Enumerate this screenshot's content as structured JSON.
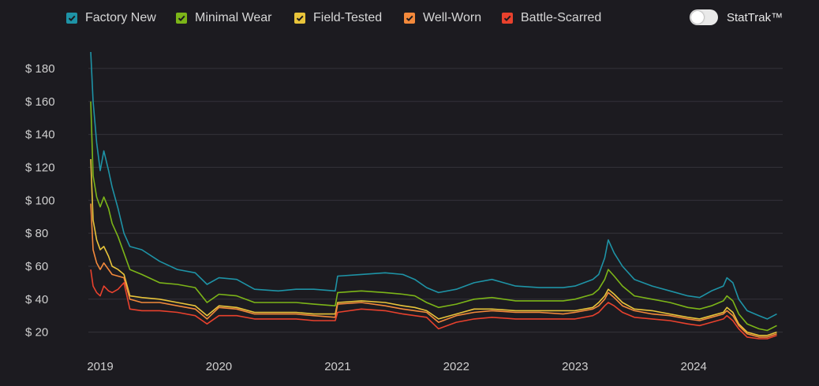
{
  "legend": {
    "items": [
      {
        "label": "Factory New",
        "color": "#1e93a6"
      },
      {
        "label": "Minimal Wear",
        "color": "#7cb518"
      },
      {
        "label": "Field-Tested",
        "color": "#e8c43a"
      },
      {
        "label": "Well-Worn",
        "color": "#f3893b"
      },
      {
        "label": "Battle-Scarred",
        "color": "#e8412d"
      }
    ],
    "stattrak_label": "StatTrak™",
    "stattrak_on": false
  },
  "chart_data": {
    "type": "line",
    "x_ticks": [
      "2019",
      "2020",
      "2021",
      "2022",
      "2023",
      "2024"
    ],
    "y_ticks": [
      "$ 20",
      "$ 40",
      "$ 60",
      "$ 80",
      "$ 100",
      "$ 120",
      "$ 140",
      "$ 160",
      "$ 180"
    ],
    "ylim": [
      16,
      190
    ],
    "xlim": [
      2018.9,
      2024.75
    ],
    "grid": true,
    "legend_position": "top",
    "series": [
      {
        "name": "Factory New",
        "color": "#1e93a6",
        "points": [
          [
            2018.92,
            190
          ],
          [
            2018.94,
            160
          ],
          [
            2018.97,
            135
          ],
          [
            2019.0,
            118
          ],
          [
            2019.03,
            130
          ],
          [
            2019.07,
            118
          ],
          [
            2019.1,
            108
          ],
          [
            2019.15,
            95
          ],
          [
            2019.2,
            80
          ],
          [
            2019.25,
            72
          ],
          [
            2019.35,
            70
          ],
          [
            2019.5,
            63
          ],
          [
            2019.65,
            58
          ],
          [
            2019.8,
            56
          ],
          [
            2019.9,
            49
          ],
          [
            2020.0,
            53
          ],
          [
            2020.15,
            52
          ],
          [
            2020.3,
            46
          ],
          [
            2020.5,
            45
          ],
          [
            2020.65,
            46
          ],
          [
            2020.8,
            46
          ],
          [
            2020.98,
            45
          ],
          [
            2021.0,
            54
          ],
          [
            2021.2,
            55
          ],
          [
            2021.4,
            56
          ],
          [
            2021.55,
            55
          ],
          [
            2021.65,
            52
          ],
          [
            2021.75,
            47
          ],
          [
            2021.85,
            44
          ],
          [
            2022.0,
            46
          ],
          [
            2022.15,
            50
          ],
          [
            2022.3,
            52
          ],
          [
            2022.5,
            48
          ],
          [
            2022.7,
            47
          ],
          [
            2022.9,
            47
          ],
          [
            2023.0,
            48
          ],
          [
            2023.15,
            52
          ],
          [
            2023.2,
            55
          ],
          [
            2023.25,
            65
          ],
          [
            2023.28,
            76
          ],
          [
            2023.33,
            68
          ],
          [
            2023.4,
            60
          ],
          [
            2023.5,
            52
          ],
          [
            2023.65,
            48
          ],
          [
            2023.8,
            45
          ],
          [
            2023.95,
            42
          ],
          [
            2024.05,
            41
          ],
          [
            2024.15,
            45
          ],
          [
            2024.25,
            48
          ],
          [
            2024.28,
            53
          ],
          [
            2024.33,
            50
          ],
          [
            2024.38,
            40
          ],
          [
            2024.45,
            33
          ],
          [
            2024.55,
            30
          ],
          [
            2024.62,
            28
          ],
          [
            2024.7,
            31
          ]
        ]
      },
      {
        "name": "Minimal Wear",
        "color": "#7cb518",
        "points": [
          [
            2018.92,
            160
          ],
          [
            2018.94,
            115
          ],
          [
            2018.97,
            102
          ],
          [
            2019.0,
            96
          ],
          [
            2019.03,
            102
          ],
          [
            2019.07,
            95
          ],
          [
            2019.1,
            86
          ],
          [
            2019.15,
            78
          ],
          [
            2019.2,
            68
          ],
          [
            2019.25,
            58
          ],
          [
            2019.35,
            55
          ],
          [
            2019.5,
            50
          ],
          [
            2019.65,
            49
          ],
          [
            2019.8,
            47
          ],
          [
            2019.9,
            38
          ],
          [
            2020.0,
            43
          ],
          [
            2020.15,
            42
          ],
          [
            2020.3,
            38
          ],
          [
            2020.5,
            38
          ],
          [
            2020.65,
            38
          ],
          [
            2020.8,
            37
          ],
          [
            2020.98,
            36
          ],
          [
            2021.0,
            44
          ],
          [
            2021.2,
            45
          ],
          [
            2021.4,
            44
          ],
          [
            2021.55,
            43
          ],
          [
            2021.65,
            42
          ],
          [
            2021.75,
            38
          ],
          [
            2021.85,
            35
          ],
          [
            2022.0,
            37
          ],
          [
            2022.15,
            40
          ],
          [
            2022.3,
            41
          ],
          [
            2022.5,
            39
          ],
          [
            2022.7,
            39
          ],
          [
            2022.9,
            39
          ],
          [
            2023.0,
            40
          ],
          [
            2023.15,
            43
          ],
          [
            2023.2,
            46
          ],
          [
            2023.25,
            52
          ],
          [
            2023.28,
            58
          ],
          [
            2023.33,
            54
          ],
          [
            2023.4,
            48
          ],
          [
            2023.5,
            42
          ],
          [
            2023.65,
            40
          ],
          [
            2023.8,
            38
          ],
          [
            2023.95,
            35
          ],
          [
            2024.05,
            34
          ],
          [
            2024.15,
            36
          ],
          [
            2024.25,
            39
          ],
          [
            2024.28,
            42
          ],
          [
            2024.33,
            39
          ],
          [
            2024.38,
            31
          ],
          [
            2024.45,
            25
          ],
          [
            2024.55,
            22
          ],
          [
            2024.62,
            21
          ],
          [
            2024.7,
            24
          ]
        ]
      },
      {
        "name": "Field-Tested",
        "color": "#e8c43a",
        "points": [
          [
            2018.92,
            125
          ],
          [
            2018.94,
            88
          ],
          [
            2018.97,
            76
          ],
          [
            2019.0,
            70
          ],
          [
            2019.03,
            72
          ],
          [
            2019.07,
            66
          ],
          [
            2019.1,
            60
          ],
          [
            2019.15,
            58
          ],
          [
            2019.2,
            55
          ],
          [
            2019.25,
            42
          ],
          [
            2019.35,
            41
          ],
          [
            2019.5,
            40
          ],
          [
            2019.65,
            38
          ],
          [
            2019.8,
            36
          ],
          [
            2019.9,
            30
          ],
          [
            2020.0,
            36
          ],
          [
            2020.15,
            35
          ],
          [
            2020.3,
            32
          ],
          [
            2020.5,
            32
          ],
          [
            2020.65,
            32
          ],
          [
            2020.8,
            31
          ],
          [
            2020.98,
            31
          ],
          [
            2021.0,
            38
          ],
          [
            2021.2,
            39
          ],
          [
            2021.4,
            38
          ],
          [
            2021.55,
            36
          ],
          [
            2021.65,
            35
          ],
          [
            2021.75,
            33
          ],
          [
            2021.85,
            28
          ],
          [
            2022.0,
            31
          ],
          [
            2022.15,
            34
          ],
          [
            2022.3,
            34
          ],
          [
            2022.5,
            33
          ],
          [
            2022.7,
            33
          ],
          [
            2022.9,
            33
          ],
          [
            2023.0,
            33
          ],
          [
            2023.15,
            35
          ],
          [
            2023.2,
            38
          ],
          [
            2023.25,
            42
          ],
          [
            2023.28,
            46
          ],
          [
            2023.33,
            43
          ],
          [
            2023.4,
            38
          ],
          [
            2023.5,
            34
          ],
          [
            2023.65,
            33
          ],
          [
            2023.8,
            31
          ],
          [
            2023.95,
            29
          ],
          [
            2024.05,
            28
          ],
          [
            2024.15,
            30
          ],
          [
            2024.25,
            32
          ],
          [
            2024.28,
            35
          ],
          [
            2024.33,
            32
          ],
          [
            2024.38,
            25
          ],
          [
            2024.45,
            20
          ],
          [
            2024.55,
            18
          ],
          [
            2024.62,
            18
          ],
          [
            2024.7,
            20
          ]
        ]
      },
      {
        "name": "Well-Worn",
        "color": "#f3893b",
        "points": [
          [
            2018.92,
            98
          ],
          [
            2018.94,
            70
          ],
          [
            2018.97,
            62
          ],
          [
            2019.0,
            58
          ],
          [
            2019.03,
            62
          ],
          [
            2019.07,
            58
          ],
          [
            2019.1,
            55
          ],
          [
            2019.15,
            54
          ],
          [
            2019.2,
            53
          ],
          [
            2019.25,
            40
          ],
          [
            2019.35,
            38
          ],
          [
            2019.5,
            38
          ],
          [
            2019.65,
            36
          ],
          [
            2019.8,
            34
          ],
          [
            2019.9,
            28
          ],
          [
            2020.0,
            35
          ],
          [
            2020.15,
            34
          ],
          [
            2020.3,
            31
          ],
          [
            2020.5,
            31
          ],
          [
            2020.65,
            31
          ],
          [
            2020.8,
            30
          ],
          [
            2020.98,
            29
          ],
          [
            2021.0,
            37
          ],
          [
            2021.2,
            38
          ],
          [
            2021.4,
            36
          ],
          [
            2021.55,
            34
          ],
          [
            2021.65,
            33
          ],
          [
            2021.75,
            32
          ],
          [
            2021.85,
            26
          ],
          [
            2022.0,
            30
          ],
          [
            2022.15,
            32
          ],
          [
            2022.3,
            33
          ],
          [
            2022.5,
            32
          ],
          [
            2022.7,
            32
          ],
          [
            2022.9,
            31
          ],
          [
            2023.0,
            32
          ],
          [
            2023.15,
            34
          ],
          [
            2023.2,
            36
          ],
          [
            2023.25,
            40
          ],
          [
            2023.28,
            44
          ],
          [
            2023.33,
            41
          ],
          [
            2023.4,
            36
          ],
          [
            2023.5,
            33
          ],
          [
            2023.65,
            31
          ],
          [
            2023.8,
            30
          ],
          [
            2023.95,
            28
          ],
          [
            2024.05,
            27
          ],
          [
            2024.15,
            29
          ],
          [
            2024.25,
            31
          ],
          [
            2024.28,
            33
          ],
          [
            2024.33,
            30
          ],
          [
            2024.38,
            24
          ],
          [
            2024.45,
            19
          ],
          [
            2024.55,
            17
          ],
          [
            2024.62,
            17
          ],
          [
            2024.7,
            19
          ]
        ]
      },
      {
        "name": "Battle-Scarred",
        "color": "#e8412d",
        "points": [
          [
            2018.92,
            58
          ],
          [
            2018.94,
            48
          ],
          [
            2018.97,
            44
          ],
          [
            2019.0,
            42
          ],
          [
            2019.03,
            48
          ],
          [
            2019.07,
            45
          ],
          [
            2019.1,
            44
          ],
          [
            2019.15,
            46
          ],
          [
            2019.2,
            50
          ],
          [
            2019.25,
            34
          ],
          [
            2019.35,
            33
          ],
          [
            2019.5,
            33
          ],
          [
            2019.65,
            32
          ],
          [
            2019.8,
            30
          ],
          [
            2019.9,
            25
          ],
          [
            2020.0,
            30
          ],
          [
            2020.15,
            30
          ],
          [
            2020.3,
            28
          ],
          [
            2020.5,
            28
          ],
          [
            2020.65,
            28
          ],
          [
            2020.8,
            27
          ],
          [
            2020.98,
            27
          ],
          [
            2021.0,
            32
          ],
          [
            2021.2,
            34
          ],
          [
            2021.4,
            33
          ],
          [
            2021.55,
            31
          ],
          [
            2021.65,
            30
          ],
          [
            2021.75,
            29
          ],
          [
            2021.85,
            22
          ],
          [
            2022.0,
            26
          ],
          [
            2022.15,
            28
          ],
          [
            2022.3,
            29
          ],
          [
            2022.5,
            28
          ],
          [
            2022.7,
            28
          ],
          [
            2022.9,
            28
          ],
          [
            2023.0,
            28
          ],
          [
            2023.15,
            30
          ],
          [
            2023.2,
            32
          ],
          [
            2023.25,
            36
          ],
          [
            2023.28,
            38
          ],
          [
            2023.33,
            36
          ],
          [
            2023.4,
            32
          ],
          [
            2023.5,
            29
          ],
          [
            2023.65,
            28
          ],
          [
            2023.8,
            27
          ],
          [
            2023.95,
            25
          ],
          [
            2024.05,
            24
          ],
          [
            2024.15,
            26
          ],
          [
            2024.25,
            28
          ],
          [
            2024.28,
            30
          ],
          [
            2024.33,
            27
          ],
          [
            2024.38,
            22
          ],
          [
            2024.45,
            17
          ],
          [
            2024.55,
            16
          ],
          [
            2024.62,
            16
          ],
          [
            2024.7,
            18
          ]
        ]
      }
    ]
  }
}
